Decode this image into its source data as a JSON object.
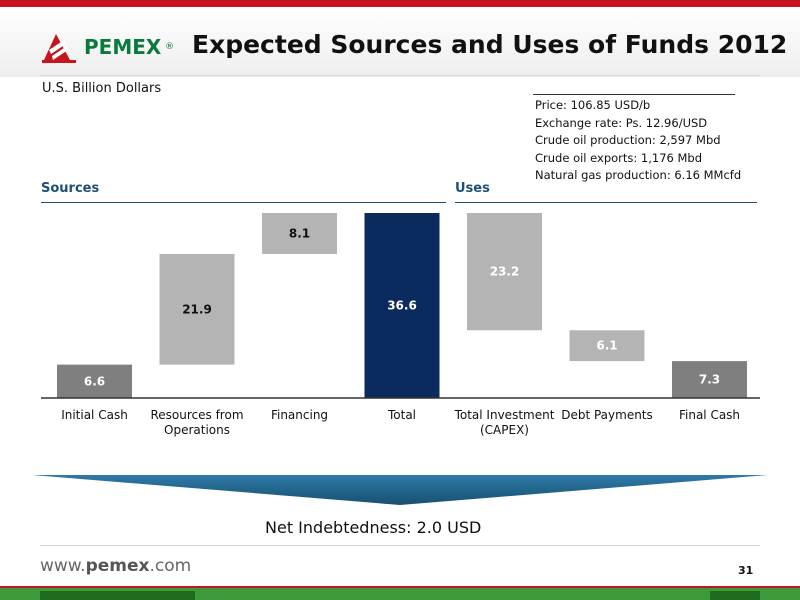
{
  "header": {
    "brand": "PEMEX",
    "registered": "®",
    "title": "Expected Sources and Uses of Funds 2012"
  },
  "units_label": "U.S. Billion Dollars",
  "assumptions": [
    "Price: 106.85 USD/b",
    "Exchange rate: Ps. 12.96/USD",
    "Crude oil production: 2,597 Mbd",
    "Crude oil exports: 1,176 Mbd",
    "Natural gas production: 6.16 MMcfd"
  ],
  "sections": {
    "sources": "Sources",
    "uses": "Uses"
  },
  "chart_data": {
    "type": "bar",
    "subtype": "waterfall",
    "categories": [
      "Initial Cash",
      "Resources from Operations",
      "Financing",
      "Total",
      "Total Investment (CAPEX)",
      "Debt Payments",
      "Final Cash"
    ],
    "category_lines": [
      [
        "Initial Cash"
      ],
      [
        "Resources from",
        "Operations"
      ],
      [
        "Financing"
      ],
      [
        "Total"
      ],
      [
        "Total Investment",
        "(CAPEX)"
      ],
      [
        "Debt Payments"
      ],
      [
        "Final Cash"
      ]
    ],
    "values": [
      6.6,
      21.9,
      8.1,
      36.6,
      23.2,
      6.1,
      7.3
    ],
    "value_labels": [
      "6.6",
      "21.9",
      "8.1",
      "36.6",
      "23.2",
      "6.1",
      "7.3"
    ],
    "bar_ranges": [
      [
        0,
        6.6
      ],
      [
        6.6,
        28.5
      ],
      [
        28.5,
        36.6
      ],
      [
        0,
        36.6
      ],
      [
        13.4,
        36.6
      ],
      [
        7.3,
        13.4
      ],
      [
        0,
        7.3
      ]
    ],
    "ylim": [
      0,
      36.6
    ],
    "grid": false,
    "colors": {
      "initial": "#7f7f7f",
      "flow": "#b4b4b4",
      "total": "#0b2a5e",
      "final": "#7f7f7f",
      "label_dark": "#111111",
      "label_light": "#ffffff"
    },
    "bar_colors": [
      "#7f7f7f",
      "#b4b4b4",
      "#b4b4b4",
      "#0b2a5e",
      "#b4b4b4",
      "#b4b4b4",
      "#7f7f7f"
    ],
    "label_colors": [
      "#ffffff",
      "#111111",
      "#111111",
      "#ffffff",
      "#ffffff",
      "#ffffff",
      "#ffffff"
    ]
  },
  "summary": {
    "net_indebtedness": "Net Indebtedness: 2.0 USD"
  },
  "footer": {
    "url_prefix": "www.",
    "url_brand": "pemex",
    "url_suffix": ".com",
    "page_number": "31"
  },
  "colors": {
    "brand_red": "#c4161c",
    "brand_green": "#0a7a3c",
    "section_blue": "#1f4e79",
    "banner_blue": "#1f5f8b"
  }
}
